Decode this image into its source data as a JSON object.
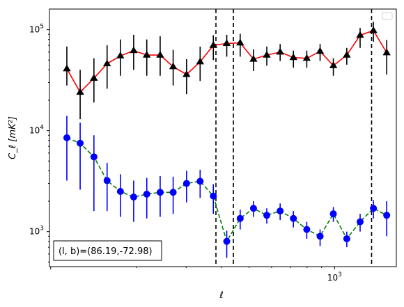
{
  "chart_data": {
    "type": "line",
    "title": "",
    "xlabel": "ℓ",
    "ylabel": "C_ℓ  [mK²]",
    "xscale": "log",
    "yscale": "log",
    "xlim": [
      99,
      1650
    ],
    "ylim": [
      450,
      160000
    ],
    "x_ticks": [
      {
        "value": 1000,
        "label": "10",
        "sup": "3"
      }
    ],
    "y_ticks": [
      {
        "value": 1000,
        "label": "10",
        "sup": "3"
      },
      {
        "value": 10000,
        "label": "10",
        "sup": "4"
      },
      {
        "value": 100000,
        "label": "10",
        "sup": "5"
      }
    ],
    "grid": false,
    "legend": {
      "placement": "top-right",
      "entries": []
    },
    "annotation": {
      "text": "(l, b)=(86.19,-72.98)"
    },
    "vlines": [
      {
        "x": 382
      },
      {
        "x": 440
      },
      {
        "x": 1350
      }
    ],
    "series": [
      {
        "color": "#ff0000",
        "marker_color": "#000000",
        "marker": "triangle",
        "linestyle": "solid",
        "x": [
          114,
          127,
          142,
          158,
          176,
          196,
          218,
          243,
          270,
          301,
          336,
          374,
          417,
          465,
          518,
          577,
          643,
          716,
          798,
          889,
          990,
          1104,
          1230,
          1370,
          1526
        ],
        "values": [
          41000,
          24000,
          33000,
          46000,
          55000,
          62000,
          56000,
          56000,
          43000,
          36000,
          48000,
          70000,
          73000,
          74000,
          51000,
          56000,
          60000,
          53000,
          52000,
          61000,
          44000,
          56000,
          88000,
          98000,
          59000
        ],
        "err_low": [
          13000,
          11000,
          14000,
          20000,
          20000,
          22000,
          21000,
          21000,
          15000,
          13000,
          17000,
          20000,
          19000,
          20000,
          12000,
          12000,
          11000,
          11000,
          10000,
          12000,
          9000,
          11000,
          22000,
          22000,
          23000
        ],
        "err_high": [
          27000,
          16000,
          19000,
          24000,
          25000,
          27000,
          24000,
          30000,
          20000,
          15000,
          20000,
          18000,
          16000,
          17000,
          13000,
          12000,
          12000,
          9000,
          10000,
          11000,
          8000,
          10000,
          16000,
          22000,
          20000
        ]
      },
      {
        "color": "#008000",
        "marker_color": "#0000ff",
        "marker": "circle",
        "linestyle": "dashed",
        "x": [
          114,
          127,
          142,
          158,
          176,
          196,
          218,
          243,
          270,
          301,
          336,
          374,
          417,
          465,
          518,
          577,
          643,
          716,
          798,
          889,
          990,
          1104,
          1230,
          1370,
          1526
        ],
        "values": [
          8500,
          7500,
          5500,
          3200,
          2500,
          2200,
          2350,
          2450,
          2450,
          3000,
          3150,
          2250,
          800,
          1350,
          1700,
          1450,
          1600,
          1350,
          1050,
          900,
          1500,
          850,
          1250,
          1700,
          1450
        ],
        "err_low": [
          5300,
          4900,
          3900,
          1600,
          1100,
          950,
          1000,
          1050,
          950,
          1050,
          1000,
          750,
          250,
          300,
          300,
          250,
          300,
          250,
          200,
          180,
          250,
          150,
          250,
          350,
          550
        ],
        "err_high": [
          5500,
          4500,
          3500,
          1600,
          1200,
          1000,
          1050,
          1100,
          1050,
          1000,
          950,
          700,
          220,
          300,
          300,
          250,
          300,
          250,
          200,
          150,
          250,
          150,
          250,
          350,
          550
        ]
      }
    ]
  }
}
